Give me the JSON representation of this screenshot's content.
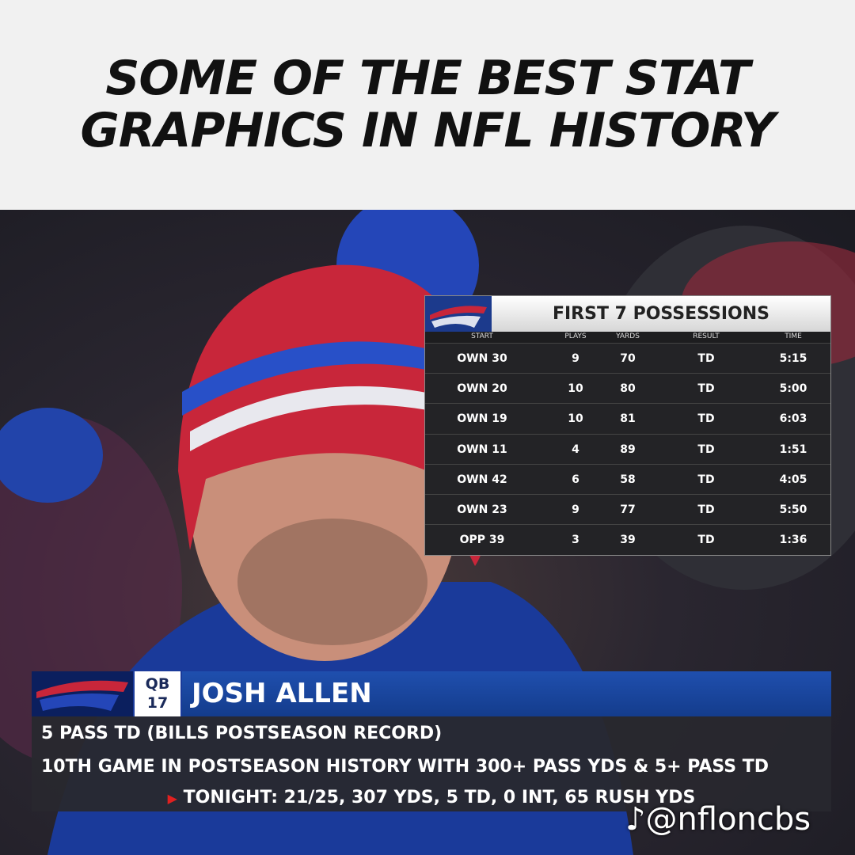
{
  "header": {
    "title_lines": [
      "SOME OF THE BEST STAT",
      "GRAPHICS IN NFL HISTORY"
    ]
  },
  "possessions": {
    "title": "FIRST 7 POSSESSIONS",
    "columns": [
      "START",
      "PLAYS",
      "YARDS",
      "RESULT",
      "TIME"
    ],
    "rows": [
      [
        "OWN 30",
        9,
        70,
        "TD",
        "5:15"
      ],
      [
        "OWN 20",
        10,
        80,
        "TD",
        "5:00"
      ],
      [
        "OWN 19",
        10,
        81,
        "TD",
        "6:03"
      ],
      [
        "OWN 11",
        4,
        89,
        "TD",
        "1:51"
      ],
      [
        "OWN 42",
        6,
        58,
        "TD",
        "4:05"
      ],
      [
        "OWN 23",
        9,
        77,
        "TD",
        "5:50"
      ],
      [
        "OPP 39",
        3,
        39,
        "TD",
        "1:36"
      ]
    ]
  },
  "lower_third": {
    "position": "QB",
    "number": "17",
    "name": "JOSH ALLEN",
    "lines": [
      "5 PASS TD (BILLS POSTSEASON RECORD)",
      "10TH GAME IN POSTSEASON HISTORY WITH 300+ PASS YDS & 5+ PASS TD"
    ],
    "tonight": "TONIGHT: 21/25, 307 YDS, 5 TD, 0 INT, 65 RUSH YDS"
  },
  "watermark": "@nfloncbs"
}
